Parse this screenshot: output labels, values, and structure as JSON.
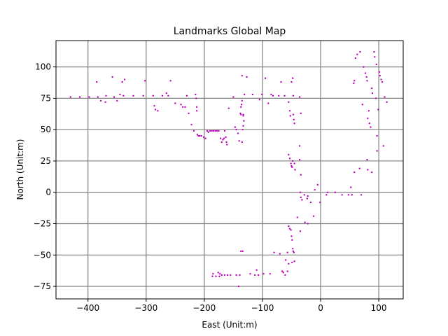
{
  "chart_data": {
    "type": "scatter",
    "title": "Landmarks Global Map",
    "xlabel": "East (Unit:m)",
    "ylabel": "North (Unit:m)",
    "xlim": [
      -455,
      142
    ],
    "ylim": [
      -85,
      121
    ],
    "xticks": [
      -400,
      -300,
      -200,
      -100,
      0,
      100
    ],
    "yticks": [
      -75,
      -50,
      -25,
      0,
      25,
      50,
      75,
      100
    ],
    "grid": true,
    "marker_color": "#bf00bf",
    "series": [
      {
        "points": [
          [
            -430,
            76
          ],
          [
            -414,
            76
          ],
          [
            -398,
            76
          ],
          [
            -385,
            88
          ],
          [
            -383,
            76
          ],
          [
            -378,
            73
          ],
          [
            -370,
            72
          ],
          [
            -369,
            77
          ],
          [
            -358,
            92
          ],
          [
            -355,
            76
          ],
          [
            -350,
            73
          ],
          [
            -345,
            78
          ],
          [
            -341,
            88
          ],
          [
            -339,
            77
          ],
          [
            -337,
            90
          ],
          [
            -322,
            77
          ],
          [
            -305,
            77
          ],
          [
            -302,
            89
          ],
          [
            -288,
            77
          ],
          [
            -286,
            69
          ],
          [
            -284,
            66
          ],
          [
            -280,
            65
          ],
          [
            -272,
            77
          ],
          [
            -265,
            79
          ],
          [
            -262,
            77
          ],
          [
            -258,
            89
          ],
          [
            -250,
            71
          ],
          [
            -240,
            70
          ],
          [
            -237,
            68
          ],
          [
            -233,
            68
          ],
          [
            -230,
            77
          ],
          [
            -227,
            63
          ],
          [
            -222,
            54
          ],
          [
            -218,
            49
          ],
          [
            -215,
            78
          ],
          [
            -214,
            75
          ],
          [
            -213,
            68
          ],
          [
            -213,
            65
          ],
          [
            -212,
            46
          ],
          [
            -210,
            45
          ],
          [
            -208,
            45
          ],
          [
            -205,
            45
          ],
          [
            -201,
            44
          ],
          [
            -198,
            43
          ],
          [
            -195,
            49
          ],
          [
            -193,
            48
          ],
          [
            -190,
            49
          ],
          [
            -187,
            49
          ],
          [
            -184,
            49
          ],
          [
            -181,
            49
          ],
          [
            -178,
            49
          ],
          [
            -175,
            49
          ],
          [
            -172,
            43
          ],
          [
            -170,
            40
          ],
          [
            -168,
            42
          ],
          [
            -166,
            43
          ],
          [
            -165,
            49
          ],
          [
            -163,
            44
          ],
          [
            -162,
            40
          ],
          [
            -161,
            38
          ],
          [
            -158,
            67
          ],
          [
            -150,
            76
          ],
          [
            -147,
            52
          ],
          [
            -145,
            50
          ],
          [
            -142,
            47
          ],
          [
            -140,
            41
          ],
          [
            -138,
            63
          ],
          [
            -137,
            62
          ],
          [
            -137,
            68
          ],
          [
            -136,
            70
          ],
          [
            -135,
            73
          ],
          [
            -135,
            40
          ],
          [
            -134,
            50
          ],
          [
            -133,
            53
          ],
          [
            -133,
            61
          ],
          [
            -133,
            62
          ],
          [
            -132,
            57
          ],
          [
            -131,
            78
          ],
          [
            -135,
            93
          ],
          [
            -127,
            92
          ],
          [
            -117,
            78
          ],
          [
            -105,
            74
          ],
          [
            -101,
            78
          ],
          [
            -95,
            91
          ],
          [
            -90,
            71
          ],
          [
            -85,
            78
          ],
          [
            -82,
            77
          ],
          [
            -72,
            77
          ],
          [
            -68,
            88
          ],
          [
            -62,
            77
          ],
          [
            -55,
            72
          ],
          [
            -53,
            65
          ],
          [
            -52,
            61
          ],
          [
            -50,
            88
          ],
          [
            -48,
            91
          ],
          [
            -47,
            77
          ],
          [
            -47,
            62
          ],
          [
            -46,
            58
          ],
          [
            -45,
            55
          ],
          [
            -36,
            76
          ],
          [
            -34,
            63
          ],
          [
            -55,
            30
          ],
          [
            -53,
            27
          ],
          [
            -51,
            23
          ],
          [
            -50,
            21
          ],
          [
            -49,
            20
          ],
          [
            -48,
            25
          ],
          [
            -45,
            23
          ],
          [
            -44,
            18
          ],
          [
            -36,
            37
          ],
          [
            -36,
            26
          ],
          [
            -34,
            14
          ],
          [
            -35,
            0
          ],
          [
            -34,
            -4
          ],
          [
            -32,
            -6
          ],
          [
            -28,
            -2
          ],
          [
            -23,
            -5
          ],
          [
            -22,
            -3
          ],
          [
            -17,
            -8
          ],
          [
            -10,
            2
          ],
          [
            -5,
            6
          ],
          [
            -1,
            -8
          ],
          [
            10,
            -2
          ],
          [
            12,
            0
          ],
          [
            25,
            0
          ],
          [
            37,
            -2
          ],
          [
            48,
            -2
          ],
          [
            52,
            4
          ],
          [
            54,
            -2
          ],
          [
            58,
            16
          ],
          [
            67,
            19
          ],
          [
            70,
            -2
          ],
          [
            80,
            26
          ],
          [
            81,
            18
          ],
          [
            88,
            16
          ],
          [
            57,
            87
          ],
          [
            58,
            89
          ],
          [
            60,
            107
          ],
          [
            63,
            110
          ],
          [
            68,
            112
          ],
          [
            72,
            70
          ],
          [
            74,
            100
          ],
          [
            77,
            95
          ],
          [
            79,
            92
          ],
          [
            80,
            89
          ],
          [
            81,
            59
          ],
          [
            83,
            65
          ],
          [
            84,
            55
          ],
          [
            86,
            52
          ],
          [
            88,
            83
          ],
          [
            89,
            79
          ],
          [
            92,
            112
          ],
          [
            93,
            108
          ],
          [
            95,
            75
          ],
          [
            96,
            102
          ],
          [
            97,
            45
          ],
          [
            97,
            33
          ],
          [
            99,
            66
          ],
          [
            101,
            96
          ],
          [
            102,
            93
          ],
          [
            104,
            90
          ],
          [
            106,
            88
          ],
          [
            108,
            37
          ],
          [
            110,
            76
          ],
          [
            114,
            72
          ],
          [
            -55,
            -27
          ],
          [
            -53,
            -29
          ],
          [
            -51,
            -30
          ],
          [
            -50,
            -35
          ],
          [
            -49,
            -38
          ],
          [
            -48,
            -45
          ],
          [
            -47,
            -47
          ],
          [
            -46,
            -48
          ],
          [
            -45,
            -55
          ],
          [
            -49,
            -56
          ],
          [
            -55,
            -57
          ],
          [
            -57,
            -48
          ],
          [
            -40,
            -20
          ],
          [
            -35,
            -31
          ],
          [
            -27,
            -24
          ],
          [
            -22,
            -25
          ],
          [
            -12,
            -19
          ],
          [
            -80,
            -48
          ],
          [
            -70,
            -49
          ],
          [
            -66,
            -63
          ],
          [
            -64,
            -64
          ],
          [
            -60,
            -54
          ],
          [
            -61,
            -66
          ],
          [
            -57,
            -63
          ],
          [
            -87,
            -65
          ],
          [
            -98,
            -65
          ],
          [
            -107,
            -66
          ],
          [
            -110,
            -62
          ],
          [
            -113,
            -66
          ],
          [
            -121,
            -65
          ],
          [
            -134,
            -47
          ],
          [
            -137,
            -47
          ],
          [
            -139,
            -66
          ],
          [
            -141,
            -75
          ],
          [
            -145,
            -66
          ],
          [
            -155,
            -66
          ],
          [
            -160,
            -66
          ],
          [
            -165,
            -66
          ],
          [
            -170,
            -66
          ],
          [
            -173,
            -65
          ],
          [
            -174,
            -67
          ],
          [
            -176,
            -64
          ],
          [
            -180,
            -67
          ],
          [
            -185,
            -65
          ],
          [
            -186,
            -67
          ]
        ]
      }
    ]
  }
}
